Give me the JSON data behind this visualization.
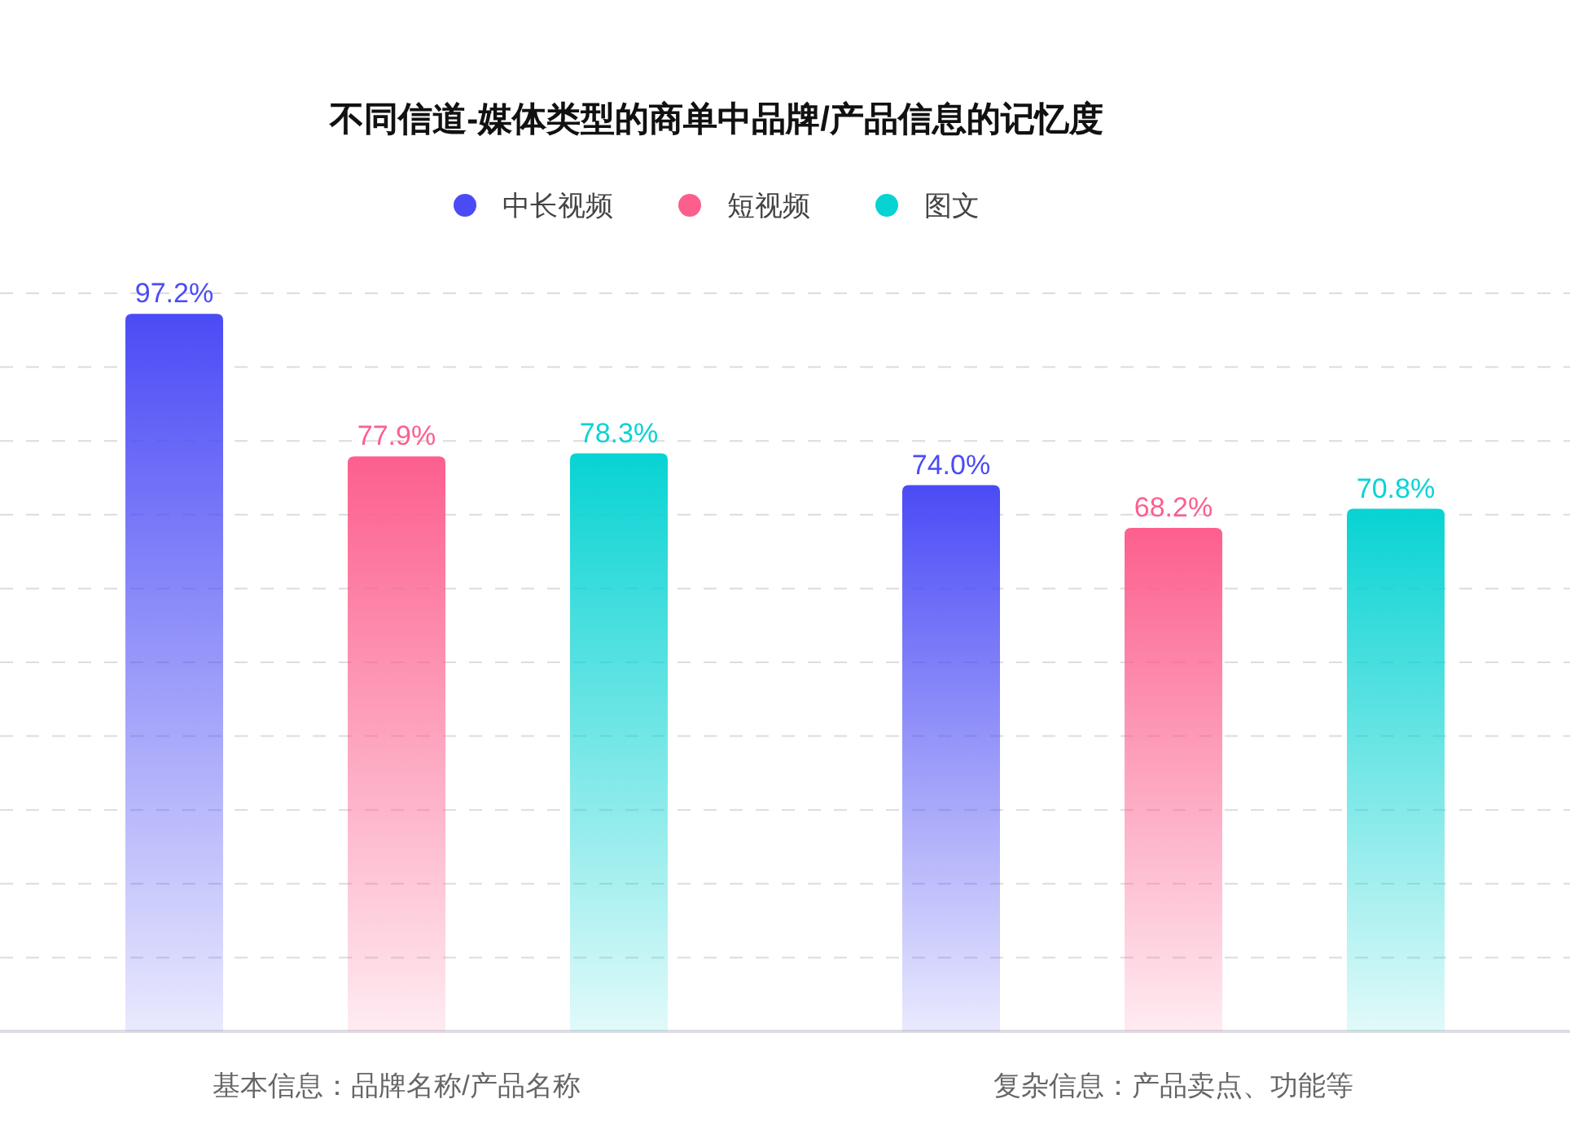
{
  "chart_data": {
    "type": "bar",
    "title": "不同信道-媒体类型的商单中品牌/产品信息的记忆度",
    "categories": [
      "基本信息：品牌名称/产品名称",
      "复杂信息：产品卖点、功能等"
    ],
    "series": [
      {
        "name": "中长视频",
        "color": "#4b4bf6",
        "values": [
          97.2,
          74.0
        ],
        "value_labels": [
          "97.2%",
          "74.0%"
        ]
      },
      {
        "name": "短视频",
        "color": "#fc5f8e",
        "values": [
          77.9,
          68.2
        ],
        "value_labels": [
          "77.9%",
          "68.2%"
        ]
      },
      {
        "name": "图文",
        "color": "#08d3d3",
        "values": [
          78.3,
          70.8
        ],
        "value_labels": [
          "78.3%",
          "70.8%"
        ]
      }
    ],
    "ylim": [
      0,
      100
    ],
    "yticks": [
      {
        "value": 10,
        "label": null
      },
      {
        "value": 20,
        "label": null
      },
      {
        "value": 30,
        "label": null
      },
      {
        "value": 40,
        "label": null
      },
      {
        "value": 50,
        "label": null
      },
      {
        "value": 60,
        "label": null
      },
      {
        "value": 70,
        "label": null
      },
      {
        "value": 80,
        "label": null
      },
      {
        "value": 90,
        "label": null
      },
      {
        "value": 100,
        "label": null
      }
    ],
    "grid": "y",
    "legend": "top",
    "tick_labels": "x"
  }
}
